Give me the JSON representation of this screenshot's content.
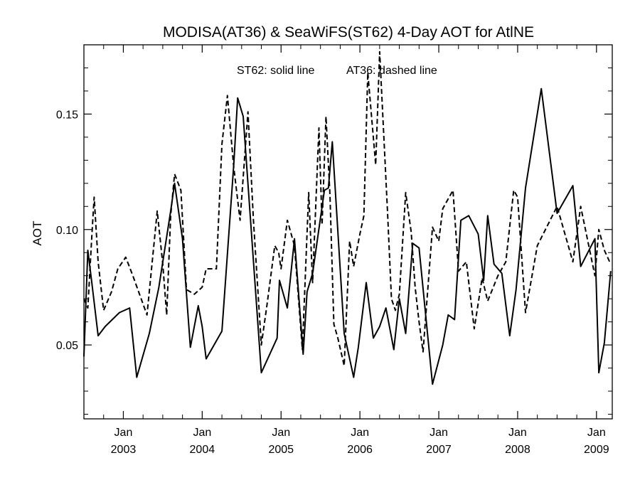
{
  "chart_data": {
    "type": "line",
    "title": "MODISA(AT36) & SeaWiFS(ST62) 4-Day AOT for AtlNE",
    "annotation_solid": "ST62: solid line",
    "annotation_dashed": "AT36: dashed line",
    "ylabel": "AOT",
    "xlabel": "",
    "xlim": [
      2002.5,
      2009.2
    ],
    "ylim": [
      0.018,
      0.18
    ],
    "grid": false,
    "legend": "none",
    "y_ticks": [
      {
        "value": 0.05,
        "label": "0.05"
      },
      {
        "value": 0.1,
        "label": "0.10"
      },
      {
        "value": 0.15,
        "label": "0.15"
      }
    ],
    "x_ticks": [
      {
        "value": 2003.0,
        "month": "Jan",
        "year": "2003"
      },
      {
        "value": 2004.0,
        "month": "Jan",
        "year": "2004"
      },
      {
        "value": 2005.0,
        "month": "Jan",
        "year": "2005"
      },
      {
        "value": 2006.0,
        "month": "Jan",
        "year": "2006"
      },
      {
        "value": 2007.0,
        "month": "Jan",
        "year": "2007"
      },
      {
        "value": 2008.0,
        "month": "Jan",
        "year": "2008"
      },
      {
        "value": 2009.0,
        "month": "Jan",
        "year": "2009"
      }
    ],
    "series": [
      {
        "line_style": "solid",
        "x": [
          2002.5,
          2002.55,
          2002.6,
          2002.68,
          2002.77,
          2002.95,
          2003.08,
          2003.17,
          2003.33,
          2003.45,
          2003.6,
          2003.65,
          2003.75,
          2003.85,
          2003.95,
          2004.0,
          2004.05,
          2004.25,
          2004.4,
          2004.45,
          2004.52,
          2004.75,
          2004.95,
          2004.98,
          2005.08,
          2005.17,
          2005.28,
          2005.33,
          2005.4,
          2005.55,
          2005.6,
          2005.65,
          2005.8,
          2005.92,
          2005.98,
          2006.08,
          2006.17,
          2006.25,
          2006.33,
          2006.43,
          2006.5,
          2006.58,
          2006.67,
          2006.75,
          2006.92,
          2007.05,
          2007.12,
          2007.2,
          2007.28,
          2007.38,
          2007.5,
          2007.57,
          2007.62,
          2007.7,
          2007.8,
          2007.9,
          2007.98,
          2008.1,
          2008.3,
          2008.5,
          2008.7,
          2008.8,
          2008.98,
          2009.03,
          2009.1,
          2009.18
        ],
        "y": [
          0.045,
          0.091,
          0.077,
          0.054,
          0.058,
          0.064,
          0.066,
          0.036,
          0.055,
          0.075,
          0.108,
          0.12,
          0.096,
          0.049,
          0.067,
          0.058,
          0.044,
          0.056,
          0.128,
          0.157,
          0.149,
          0.038,
          0.053,
          0.078,
          0.066,
          0.096,
          0.046,
          0.073,
          0.081,
          0.117,
          0.118,
          0.138,
          0.055,
          0.036,
          0.049,
          0.077,
          0.053,
          0.058,
          0.066,
          0.048,
          0.07,
          0.055,
          0.094,
          0.092,
          0.033,
          0.05,
          0.063,
          0.061,
          0.104,
          0.106,
          0.098,
          0.078,
          0.106,
          0.085,
          0.081,
          0.054,
          0.074,
          0.118,
          0.161,
          0.107,
          0.119,
          0.084,
          0.096,
          0.038,
          0.051,
          0.082
        ]
      },
      {
        "line_style": "dashed",
        "x": [
          2002.5,
          2002.55,
          2002.6,
          2002.63,
          2002.68,
          2002.75,
          2002.85,
          2002.93,
          2003.03,
          2003.12,
          2003.3,
          2003.43,
          2003.5,
          2003.55,
          2003.6,
          2003.65,
          2003.73,
          2003.8,
          2003.9,
          2004.0,
          2004.05,
          2004.18,
          2004.25,
          2004.32,
          2004.4,
          2004.48,
          2004.58,
          2004.65,
          2004.75,
          2004.82,
          2004.92,
          2004.97,
          2005.0,
          2005.08,
          2005.17,
          2005.27,
          2005.35,
          2005.4,
          2005.48,
          2005.52,
          2005.57,
          2005.62,
          2005.67,
          2005.72,
          2005.8,
          2005.87,
          2005.92,
          2006.0,
          2006.05,
          2006.1,
          2006.2,
          2006.25,
          2006.35,
          2006.4,
          2006.45,
          2006.5,
          2006.58,
          2006.65,
          2006.7,
          2006.75,
          2006.8,
          2006.92,
          2007.0,
          2007.05,
          2007.18,
          2007.25,
          2007.35,
          2007.45,
          2007.55,
          2007.62,
          2007.75,
          2007.85,
          2007.95,
          2008.0,
          2008.1,
          2008.25,
          2008.5,
          2008.7,
          2008.8,
          2008.98,
          2009.03,
          2009.1,
          2009.18
        ],
        "y": [
          0.07,
          0.066,
          0.097,
          0.114,
          0.086,
          0.065,
          0.073,
          0.083,
          0.088,
          0.08,
          0.063,
          0.108,
          0.085,
          0.063,
          0.106,
          0.124,
          0.117,
          0.074,
          0.072,
          0.075,
          0.083,
          0.083,
          0.137,
          0.158,
          0.127,
          0.104,
          0.151,
          0.104,
          0.05,
          0.067,
          0.093,
          0.09,
          0.083,
          0.104,
          0.093,
          0.048,
          0.116,
          0.077,
          0.144,
          0.102,
          0.149,
          0.115,
          0.059,
          0.053,
          0.041,
          0.095,
          0.084,
          0.098,
          0.106,
          0.168,
          0.128,
          0.177,
          0.108,
          0.07,
          0.065,
          0.072,
          0.116,
          0.099,
          0.075,
          0.06,
          0.047,
          0.101,
          0.095,
          0.109,
          0.117,
          0.082,
          0.086,
          0.057,
          0.079,
          0.069,
          0.08,
          0.086,
          0.117,
          0.114,
          0.064,
          0.093,
          0.11,
          0.086,
          0.11,
          0.08,
          0.1,
          0.091,
          0.085
        ]
      }
    ]
  }
}
